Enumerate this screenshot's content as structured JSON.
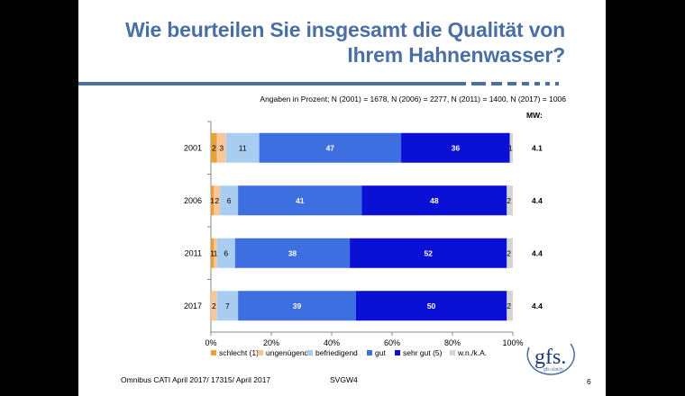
{
  "title": {
    "line1": "Wie beurteilen Sie insgesamt die Qualität von",
    "line2": "Ihrem Hahnenwasser?"
  },
  "subtitle": "Angaben in Prozent; N (2001) = 1678, N (2006) = 2277, N (2011) = 1400, N (2017) = 1006",
  "mw_header": "MW:",
  "footer": {
    "source": "Omnibus CATI April 2017/ 17315/ April 2017",
    "code": "SVGW4",
    "page": "6"
  },
  "logo": {
    "text": "gfs.",
    "subtext": "gfs-zürich"
  },
  "colors": {
    "title": "#4a6fa5",
    "rule": "#4a6fa5"
  },
  "chart_data": {
    "type": "bar",
    "orientation": "horizontal",
    "stacked": true,
    "normalized": true,
    "categories": [
      "2001",
      "2006",
      "2011",
      "2017"
    ],
    "series": [
      {
        "name": "schlecht (1)",
        "color": "#e8a23a",
        "values": [
          2,
          1,
          1,
          0
        ],
        "labels": [
          "2",
          "1",
          "1",
          ""
        ]
      },
      {
        "name": "ungenügend",
        "color": "#f7c79a",
        "values": [
          3,
          2,
          1,
          2
        ],
        "labels": [
          "3",
          "2",
          "1",
          "2"
        ]
      },
      {
        "name": "befriedigend",
        "color": "#a9cdf1",
        "values": [
          11,
          6,
          6,
          7
        ],
        "labels": [
          "11",
          "6",
          "6",
          "7"
        ]
      },
      {
        "name": "gut",
        "color": "#3d6fe0",
        "values": [
          47,
          41,
          38,
          39
        ],
        "labels": [
          "47",
          "41",
          "38",
          "39"
        ]
      },
      {
        "name": "sehr gut (5)",
        "color": "#0a10d4",
        "values": [
          36,
          48,
          52,
          50
        ],
        "labels": [
          "36",
          "48",
          "52",
          "50"
        ]
      },
      {
        "name": "w.n./k.A.",
        "color": "#d4d4d4",
        "values": [
          1,
          2,
          2,
          2
        ],
        "labels": [
          "1",
          "2",
          "2",
          "2"
        ]
      }
    ],
    "mean_values": [
      "4.1",
      "4.4",
      "4.4",
      "4.4"
    ],
    "x_ticks": [
      "0%",
      "20%",
      "40%",
      "60%",
      "80%",
      "100%"
    ],
    "xlim": [
      0,
      100
    ],
    "grid": false,
    "legend_position": "bottom"
  }
}
